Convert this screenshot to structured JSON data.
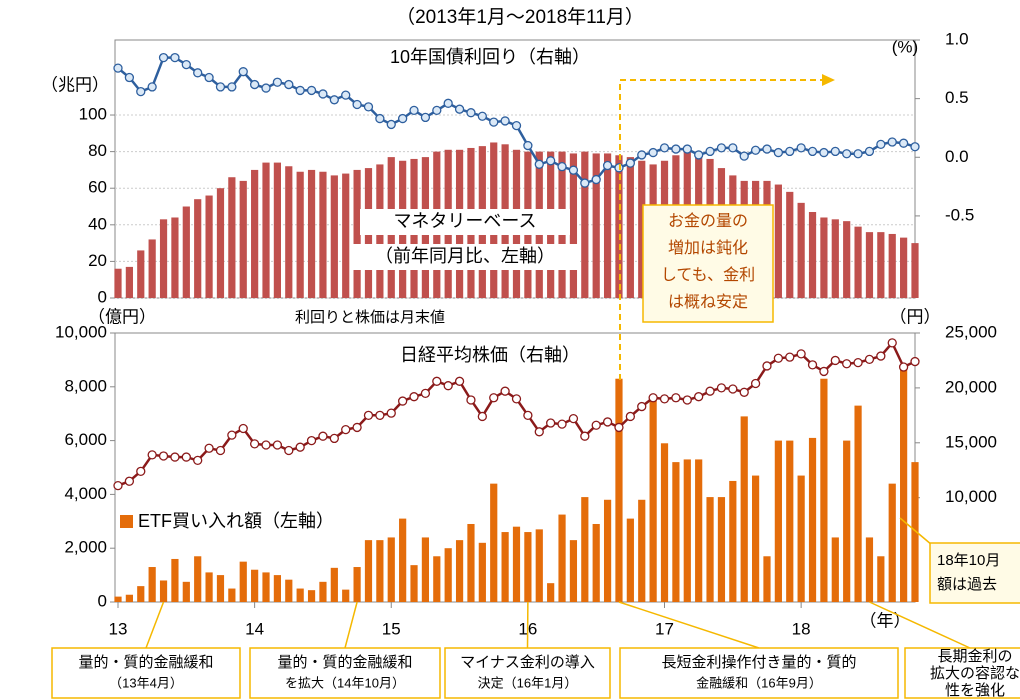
{
  "header": {
    "subtitle": "（2013年1月～2018年11月）",
    "note": "利回りと株価は月末値"
  },
  "chart_data": [
    {
      "type": "combo",
      "ylabel": "（兆円）",
      "y2label": "(%)",
      "ylim": [
        0,
        141
      ],
      "yticks": [
        0,
        20,
        40,
        60,
        80,
        100
      ],
      "y2lim": [
        -1.2,
        1.0
      ],
      "y2ticks": [
        {
          "value": 1.0,
          "label": "1.0"
        },
        0.5,
        {
          "value": 0.0,
          "label": "0.0"
        },
        -0.5
      ],
      "grid": true,
      "series": [
        {
          "name": "マネタリーベース",
          "sublabel": "（前年同月比、左軸）",
          "kind": "bar",
          "color": "#c0504d",
          "values": [
            16,
            17,
            26,
            32,
            43,
            44,
            50,
            54,
            56,
            60,
            66,
            64,
            70,
            74,
            74,
            72,
            69,
            70,
            69,
            67,
            68,
            70,
            71,
            73,
            77,
            75,
            76,
            77,
            80,
            81,
            81,
            82,
            83,
            85,
            84,
            81,
            80,
            80,
            80,
            80,
            79,
            80,
            79,
            79,
            78,
            77,
            75,
            73,
            75,
            78,
            81,
            78,
            76,
            71,
            67,
            64,
            64,
            64,
            62,
            58,
            52,
            47,
            44,
            43,
            42,
            39,
            36,
            36,
            35,
            33,
            30
          ]
        },
        {
          "name": "10年国債利回り（右軸）",
          "kind": "line",
          "axis": "y2",
          "color": "#2e5f9e",
          "values": [
            0.76,
            0.68,
            0.56,
            0.6,
            0.85,
            0.85,
            0.79,
            0.72,
            0.68,
            0.6,
            0.6,
            0.73,
            0.62,
            0.59,
            0.64,
            0.62,
            0.57,
            0.57,
            0.54,
            0.49,
            0.53,
            0.45,
            0.43,
            0.33,
            0.28,
            0.33,
            0.4,
            0.34,
            0.4,
            0.46,
            0.41,
            0.38,
            0.35,
            0.3,
            0.31,
            0.27,
            0.1,
            -0.06,
            -0.03,
            -0.08,
            -0.11,
            -0.22,
            -0.19,
            -0.07,
            -0.09,
            -0.05,
            0.02,
            0.04,
            0.08,
            0.07,
            0.07,
            0.02,
            0.05,
            0.08,
            0.08,
            0.01,
            0.06,
            0.07,
            0.04,
            0.05,
            0.08,
            0.05,
            0.04,
            0.05,
            0.03,
            0.03,
            0.05,
            0.11,
            0.13,
            0.12,
            0.09
          ]
        }
      ]
    },
    {
      "type": "combo",
      "ylabel": "（億円）",
      "y2label": "（円）",
      "xlabel": "（年）",
      "categories": [
        "13",
        null,
        null,
        null,
        null,
        null,
        null,
        null,
        null,
        null,
        null,
        null,
        "14",
        null,
        null,
        null,
        null,
        null,
        null,
        null,
        null,
        null,
        null,
        null,
        "15",
        null,
        null,
        null,
        null,
        null,
        null,
        null,
        null,
        null,
        null,
        null,
        "16",
        null,
        null,
        null,
        null,
        null,
        null,
        null,
        null,
        null,
        null,
        null,
        "17",
        null,
        null,
        null,
        null,
        null,
        null,
        null,
        null,
        null,
        null,
        null,
        "18",
        null,
        null,
        null,
        null,
        null,
        null,
        null,
        null,
        null,
        null
      ],
      "ylim": [
        0,
        10000
      ],
      "yticks": [
        0,
        {
          "value": 2000,
          "label": "2,000"
        },
        {
          "value": 4000,
          "label": "4,000"
        },
        {
          "value": 6000,
          "label": "6,000"
        },
        {
          "value": 8000,
          "label": "8,000"
        },
        {
          "value": 10000,
          "label": "10,000"
        }
      ],
      "y2lim": [
        500,
        25000
      ],
      "y2ticks": [
        {
          "value": 10000,
          "label": "10,000"
        },
        {
          "value": 15000,
          "label": "15,000"
        },
        {
          "value": 20000,
          "label": "20,000"
        },
        {
          "value": 25000,
          "label": "25,000"
        }
      ],
      "grid": false,
      "series": [
        {
          "name": "ETF買い入れ額（左軸）",
          "kind": "bar",
          "color": "#e46c0a",
          "values": [
            200,
            270,
            590,
            1300,
            800,
            1600,
            750,
            1700,
            1100,
            1000,
            500,
            1500,
            1200,
            1100,
            1000,
            830,
            500,
            440,
            750,
            1270,
            460,
            1300,
            2300,
            2300,
            2400,
            3100,
            1370,
            2400,
            1700,
            2000,
            2300,
            2900,
            2200,
            4400,
            2600,
            2800,
            2600,
            2700,
            700,
            3250,
            2300,
            3900,
            2900,
            3800,
            8300,
            3100,
            3800,
            7600,
            5900,
            5200,
            5300,
            5300,
            3900,
            3900,
            4500,
            6900,
            4700,
            1700,
            6000,
            6000,
            4700,
            6100,
            8300,
            2400,
            6000,
            7300,
            2400,
            1700,
            4400,
            8800,
            5200
          ]
        },
        {
          "name": "日経平均株価（右軸）",
          "kind": "line",
          "axis": "y2",
          "color": "#8b1a1a",
          "values": [
            11100,
            11500,
            12400,
            13900,
            13800,
            13700,
            13700,
            13400,
            14500,
            14300,
            15700,
            16300,
            14900,
            14800,
            14800,
            14300,
            14600,
            15200,
            15600,
            15400,
            16200,
            16400,
            17500,
            17500,
            17700,
            18800,
            19200,
            19500,
            20600,
            20200,
            20600,
            18900,
            17400,
            19100,
            19700,
            19000,
            17500,
            16000,
            16800,
            16700,
            17200,
            15600,
            16600,
            16900,
            16400,
            17400,
            18300,
            19100,
            19000,
            19100,
            18900,
            19200,
            19700,
            20000,
            19900,
            19600,
            20400,
            22000,
            22700,
            22800,
            23100,
            22100,
            21500,
            22500,
            22200,
            22300,
            22600,
            22900,
            24100,
            21900,
            22400
          ]
        }
      ]
    }
  ],
  "callouts": [
    {
      "lines": [
        "お金の量の",
        "増加は鈍化",
        "しても、金利",
        "は概ね安定"
      ]
    },
    {
      "lines": [
        "18年10月",
        "額は過去"
      ]
    }
  ],
  "events": [
    {
      "lines": [
        "量的・質的金融緩和",
        "（13年4月）"
      ]
    },
    {
      "lines": [
        "量的・質的金融緩和",
        "を拡大（14年10月）"
      ]
    },
    {
      "lines": [
        "マイナス金利の導入",
        "決定（16年1月）"
      ]
    },
    {
      "lines": [
        "長短金利操作付き量的・質的",
        "金融緩和（16年9月）"
      ]
    },
    {
      "lines": [
        "長期金利の",
        "拡大の容認な",
        "性を強化"
      ]
    }
  ]
}
